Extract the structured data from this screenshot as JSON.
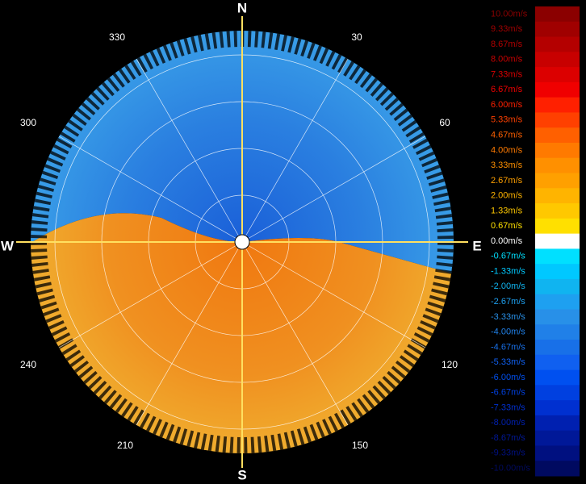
{
  "compass": {
    "north": "N",
    "south": "S",
    "east": "E",
    "west": "W"
  },
  "azimuth_labels": [
    "30",
    "60",
    "120",
    "150",
    "210",
    "240",
    "300",
    "330"
  ],
  "colorbar": {
    "entries": [
      {
        "label": "10.00m/s",
        "color": "#8b0000"
      },
      {
        "label": "9.33m/s",
        "color": "#a00000"
      },
      {
        "label": "8.67m/s",
        "color": "#b40000"
      },
      {
        "label": "8.00m/s",
        "color": "#c80000"
      },
      {
        "label": "7.33m/s",
        "color": "#dc0000"
      },
      {
        "label": "6.67m/s",
        "color": "#f00000"
      },
      {
        "label": "6.00m/s",
        "color": "#ff2000"
      },
      {
        "label": "5.33m/s",
        "color": "#ff4000"
      },
      {
        "label": "4.67m/s",
        "color": "#ff6000"
      },
      {
        "label": "4.00m/s",
        "color": "#ff7a00"
      },
      {
        "label": "3.33m/s",
        "color": "#ff9000"
      },
      {
        "label": "2.67m/s",
        "color": "#ffa000"
      },
      {
        "label": "2.00m/s",
        "color": "#ffb400"
      },
      {
        "label": "1.33m/s",
        "color": "#ffc800"
      },
      {
        "label": "0.67m/s",
        "color": "#ffe000"
      },
      {
        "label": "0.00m/s",
        "color": "#ffffff"
      },
      {
        "label": "-0.67m/s",
        "color": "#00e0ff"
      },
      {
        "label": "-1.33m/s",
        "color": "#00c8ff"
      },
      {
        "label": "-2.00m/s",
        "color": "#10b4f0"
      },
      {
        "label": "-2.67m/s",
        "color": "#1ea0f0"
      },
      {
        "label": "-3.33m/s",
        "color": "#2890e8"
      },
      {
        "label": "-4.00m/s",
        "color": "#2080e8"
      },
      {
        "label": "-4.67m/s",
        "color": "#1870e8"
      },
      {
        "label": "-5.33m/s",
        "color": "#1060f0"
      },
      {
        "label": "-6.00m/s",
        "color": "#0050f0"
      },
      {
        "label": "-6.67m/s",
        "color": "#0040e0"
      },
      {
        "label": "-7.33m/s",
        "color": "#0030d0"
      },
      {
        "label": "-8.00m/s",
        "color": "#0020b0"
      },
      {
        "label": "-8.67m/s",
        "color": "#001898"
      },
      {
        "label": "-9.33m/s",
        "color": "#001080"
      },
      {
        "label": "-10.00m/s",
        "color": "#000a60"
      }
    ]
  }
}
